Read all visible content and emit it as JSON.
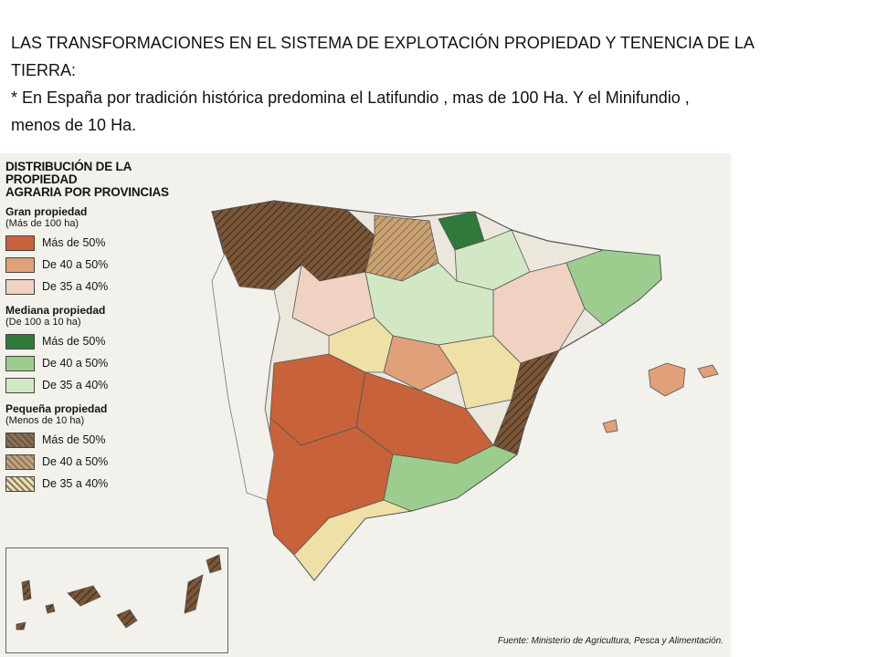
{
  "slide": {
    "heading_line1": "LAS TRANSFORMACIONES EN EL SISTEMA DE EXPLOTACIÓN PROPIEDAD Y TENENCIA DE LA",
    "heading_line2": "TIERRA:",
    "body_line1": "* En España por tradición histórica predomina el Latifundio , mas de 100 Ha. Y el Minifundio ,",
    "body_line2": "menos de 10 Ha."
  },
  "map": {
    "title_line1": "DISTRIBUCIÓN DE LA PROPIEDAD",
    "title_line2": "AGRARIA POR PROVINCIAS",
    "legend": [
      {
        "title": "Gran propiedad",
        "subtitle": "(Más de 100 ha)",
        "items": [
          {
            "label": "Más de 50%",
            "color": "#c8623a",
            "pattern": "solid"
          },
          {
            "label": "De 40 a 50%",
            "color": "#e0a07a",
            "pattern": "solid"
          },
          {
            "label": "De 35 a 40%",
            "color": "#efd2c2",
            "pattern": "solid"
          }
        ]
      },
      {
        "title": "Mediana propiedad",
        "subtitle": "(De 100 a 10 ha)",
        "items": [
          {
            "label": "Más de 50%",
            "color": "#2f7a3a",
            "pattern": "solid"
          },
          {
            "label": "De 40 a 50%",
            "color": "#9ccd8e",
            "pattern": "solid"
          },
          {
            "label": "De 35 a 40%",
            "color": "#d2e8c4",
            "pattern": "solid"
          }
        ]
      },
      {
        "title": "Pequeña propiedad",
        "subtitle": "(Menos de 10 ha)",
        "items": [
          {
            "label": "Más de 50%",
            "color": "#7a5638",
            "pattern": "hatched"
          },
          {
            "label": "De 40 a 50%",
            "color": "#c9a273",
            "pattern": "hatched"
          },
          {
            "label": "De 35 a 40%",
            "color": "#efe0a8",
            "pattern": "hatched"
          }
        ]
      }
    ],
    "source": "Fuente: Ministerio de Agricultura, Pesca y Alimentación."
  }
}
